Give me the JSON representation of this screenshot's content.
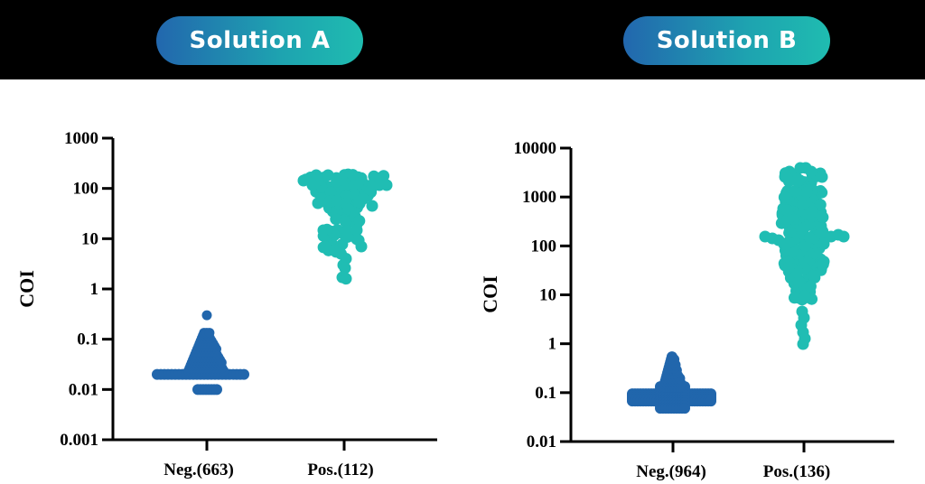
{
  "header": {
    "panels": [
      {
        "title": "Solution A"
      },
      {
        "title": "Solution B"
      }
    ],
    "gradient_start": "#2267ae",
    "gradient_end": "#1fbcb0",
    "band_color": "#000000"
  },
  "colors": {
    "negative": "#2166ac",
    "positive": "#20bdb3",
    "axis": "#000000"
  },
  "chart_data": [
    {
      "type": "scatter",
      "subtype": "beeswarm",
      "title": "Solution A",
      "ylabel": "COI",
      "xlabel": "",
      "yscale": "log",
      "ylim": [
        0.001,
        1000
      ],
      "yticks": [
        "1000",
        "100",
        "10",
        "1",
        "0.1",
        "0.01",
        "0.001"
      ],
      "categories": [
        "Neg.(663)",
        "Pos.(112)"
      ],
      "series": [
        {
          "name": "Neg.",
          "n": 663,
          "color": "#2166ac",
          "min": 0.01,
          "max": 0.3,
          "mode": 0.02,
          "description": "Dense horizontal band at ~0.02, smaller band at 0.01, tapered column up to ~0.15, single outlier ~0.3"
        },
        {
          "name": "Pos.",
          "n": 112,
          "color": "#20bdb3",
          "min": 1.6,
          "max": 200,
          "mode": 100,
          "description": "Wide cluster between ~30 and ~200, narrowing down through ~5-10, tail to ~1.6"
        }
      ],
      "grid": false,
      "legend": null
    },
    {
      "type": "scatter",
      "subtype": "beeswarm",
      "title": "Solution B",
      "ylabel": "COI",
      "xlabel": "",
      "yscale": "log",
      "ylim": [
        0.01,
        10000
      ],
      "yticks": [
        "10000",
        "1000",
        "100",
        "10",
        "1",
        "0.1",
        "0.01"
      ],
      "categories": [
        "Neg.(964)",
        "Pos.(136)"
      ],
      "series": [
        {
          "name": "Neg.",
          "n": 964,
          "color": "#2166ac",
          "min": 0.04,
          "max": 0.6,
          "mode": 0.08,
          "description": "Dense horizontal band at ~0.07-0.09, tapering column up to ~0.6"
        },
        {
          "name": "Pos.",
          "n": 136,
          "color": "#20bdb3",
          "min": 1.0,
          "max": 4000,
          "mode": 150,
          "description": "Elongated cluster from ~4000 down to ~5, widest around ~150, tail to ~1"
        }
      ],
      "grid": false,
      "legend": null
    }
  ]
}
